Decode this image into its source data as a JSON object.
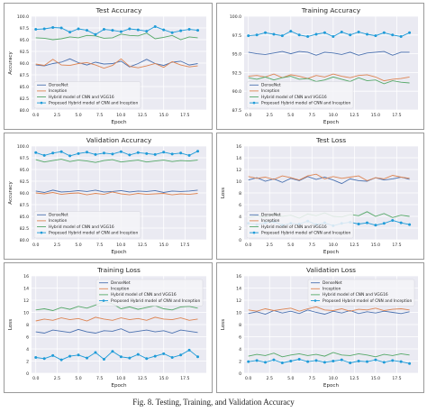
{
  "figure": {
    "caption": "Fig. 8.   Testing, Training, and Validation Accuracy",
    "colors": {
      "panel_bg": "#eaeaf2",
      "grid": "#ffffff",
      "densenet": "#4c72b0",
      "inception": "#dd8452",
      "hybrid_vgg": "#55a868",
      "proposed": "#1f9bd8"
    }
  },
  "chart_data": [
    {
      "type": "line",
      "title": "Test Accuracy",
      "xlabel": "Epoch",
      "ylabel": "Accuracy",
      "xlim": [
        -0.5,
        20
      ],
      "ylim": [
        80,
        100
      ],
      "xticks": [
        0,
        2.5,
        5,
        7.5,
        10,
        12.5,
        15,
        17.5
      ],
      "xtick_labels": [
        "0.0",
        "2.5",
        "5.0",
        "7.5",
        "10.0",
        "12.5",
        "15.0",
        "17.5"
      ],
      "yticks": [
        80,
        82.5,
        85,
        87.5,
        90,
        92.5,
        95,
        97.5,
        100
      ],
      "ytick_labels": [
        "80.0",
        "82.5",
        "85.0",
        "87.5",
        "90.0",
        "92.5",
        "95.0",
        "97.5",
        "100.0"
      ],
      "grid": true,
      "legend": "bottom-left",
      "x": [
        0,
        1,
        2,
        3,
        4,
        5,
        6,
        7,
        8,
        9,
        10,
        11,
        12,
        13,
        14,
        15,
        16,
        17,
        18,
        19
      ],
      "series": [
        {
          "name": "DenseNet",
          "color_key": "densenet",
          "marker": false,
          "values": [
            89.6,
            89.4,
            89.9,
            90.2,
            90.9,
            90.1,
            89.6,
            90.2,
            89.8,
            89.9,
            90.4,
            89.2,
            89.9,
            90.8,
            89.9,
            89.5,
            90.2,
            90.4,
            89.6,
            89.9
          ]
        },
        {
          "name": "Inception",
          "color_key": "inception",
          "marker": false,
          "values": [
            89.8,
            89.5,
            90.8,
            89.6,
            89.5,
            89.9,
            90.1,
            89.6,
            88.9,
            89.5,
            90.9,
            89.3,
            89.0,
            89.4,
            89.9,
            89.1,
            90.3,
            89.6,
            89.2,
            89.4
          ]
        },
        {
          "name": "Hybrid model of CNN and VGG16",
          "color_key": "hybrid_vgg",
          "marker": false,
          "values": [
            95.4,
            95.3,
            95.0,
            95.2,
            95.6,
            95.4,
            95.9,
            95.8,
            95.3,
            95.4,
            96.2,
            95.9,
            95.8,
            96.4,
            95.2,
            95.5,
            95.9,
            95.0,
            95.6,
            95.4
          ]
        },
        {
          "name": "Proposed Hybrid model of CNN and Inception",
          "color_key": "proposed",
          "marker": true,
          "values": [
            97.2,
            97.3,
            97.6,
            97.5,
            96.6,
            97.3,
            97.0,
            96.1,
            97.2,
            97.0,
            96.7,
            97.3,
            97.1,
            96.8,
            97.8,
            97.1,
            96.5,
            96.9,
            97.2,
            97.0
          ]
        }
      ]
    },
    {
      "type": "line",
      "title": "Training Accuracy",
      "xlabel": "Epoch",
      "ylabel": "",
      "xlim": [
        -0.5,
        20
      ],
      "ylim": [
        87.5,
        100
      ],
      "xticks": [
        0,
        2.5,
        5,
        7.5,
        10,
        12.5,
        15,
        17.5
      ],
      "xtick_labels": [
        "0.0",
        "2.5",
        "5.0",
        "7.5",
        "10.0",
        "12.5",
        "15.0",
        "17.5"
      ],
      "yticks": [
        87.5,
        90,
        92.5,
        95,
        97.5,
        100
      ],
      "ytick_labels": [
        "87.5",
        "90.0",
        "92.5",
        "95.0",
        "97.5",
        "100.0"
      ],
      "grid": true,
      "legend": "bottom-left",
      "x": [
        0,
        1,
        2,
        3,
        4,
        5,
        6,
        7,
        8,
        9,
        10,
        11,
        12,
        13,
        14,
        15,
        16,
        17,
        18,
        19
      ],
      "series": [
        {
          "name": "DenseNet",
          "color_key": "densenet",
          "marker": false,
          "values": [
            95.2,
            95.0,
            94.9,
            95.1,
            95.3,
            95.0,
            95.3,
            95.2,
            94.8,
            95.2,
            95.1,
            94.9,
            95.2,
            94.8,
            95.1,
            95.2,
            95.3,
            94.8,
            95.2,
            95.2
          ]
        },
        {
          "name": "Inception",
          "color_key": "inception",
          "marker": false,
          "values": [
            92.0,
            92.1,
            91.9,
            92.3,
            91.8,
            92.2,
            92.0,
            91.7,
            92.1,
            91.9,
            92.3,
            92.0,
            91.8,
            92.1,
            92.2,
            91.9,
            91.4,
            91.6,
            91.7,
            91.9
          ]
        },
        {
          "name": "Hybrid model of CNN and VGG16",
          "color_key": "hybrid_vgg",
          "marker": false,
          "values": [
            91.8,
            91.6,
            91.9,
            91.5,
            91.8,
            92.0,
            91.6,
            91.7,
            91.3,
            91.5,
            91.9,
            91.6,
            91.3,
            91.8,
            91.4,
            91.5,
            91.0,
            91.4,
            91.2,
            91.1
          ]
        },
        {
          "name": "Proposed Hybrid model of CNN and Inception",
          "color_key": "proposed",
          "marker": true,
          "values": [
            97.4,
            97.5,
            97.8,
            97.6,
            97.4,
            98.0,
            97.5,
            97.3,
            97.6,
            97.8,
            97.3,
            97.9,
            97.5,
            97.9,
            97.6,
            97.4,
            97.8,
            97.5,
            97.3,
            97.8
          ]
        }
      ]
    },
    {
      "type": "line",
      "title": "Validation Accuracy",
      "xlabel": "Epoch",
      "ylabel": "Accuracy",
      "xlim": [
        -0.5,
        20
      ],
      "ylim": [
        80,
        100
      ],
      "xticks": [
        0,
        2.5,
        5,
        7.5,
        10,
        12.5,
        15,
        17.5
      ],
      "xtick_labels": [
        "0.0",
        "2.5",
        "5.0",
        "7.5",
        "10.0",
        "12.5",
        "15.0",
        "17.5"
      ],
      "yticks": [
        80,
        82.5,
        85,
        87.5,
        90,
        92.5,
        95,
        97.5,
        100
      ],
      "ytick_labels": [
        "80.0",
        "82.5",
        "85.0",
        "87.5",
        "90.0",
        "92.5",
        "95.0",
        "97.5",
        "100.0"
      ],
      "grid": true,
      "legend": "bottom-left",
      "x": [
        0,
        1,
        2,
        3,
        4,
        5,
        6,
        7,
        8,
        9,
        10,
        11,
        12,
        13,
        14,
        15,
        16,
        17,
        18,
        19
      ],
      "series": [
        {
          "name": "DenseNet",
          "color_key": "densenet",
          "marker": false,
          "values": [
            90.4,
            90.1,
            90.6,
            90.2,
            90.3,
            90.5,
            90.3,
            90.6,
            90.2,
            90.3,
            90.5,
            90.2,
            90.4,
            90.3,
            90.5,
            90.1,
            90.4,
            90.3,
            90.4,
            90.6
          ]
        },
        {
          "name": "Inception",
          "color_key": "inception",
          "marker": false,
          "values": [
            90.0,
            89.8,
            90.1,
            89.7,
            89.9,
            90.0,
            89.6,
            89.9,
            89.7,
            90.2,
            89.8,
            89.6,
            89.9,
            89.7,
            89.8,
            89.9,
            89.6,
            89.8,
            89.7,
            89.9
          ]
        },
        {
          "name": "Hybrid model of CNN and VGG16",
          "color_key": "hybrid_vgg",
          "marker": false,
          "values": [
            97.1,
            96.6,
            96.9,
            97.2,
            96.7,
            97.0,
            96.8,
            96.5,
            96.9,
            97.1,
            96.6,
            96.8,
            97.0,
            96.6,
            96.8,
            97.0,
            96.7,
            96.9,
            96.8,
            97.0
          ]
        },
        {
          "name": "Proposed Hybrid model of CNN and Inception",
          "color_key": "proposed",
          "marker": true,
          "values": [
            98.6,
            98.0,
            98.5,
            98.8,
            97.9,
            98.4,
            98.7,
            98.2,
            98.5,
            98.3,
            98.8,
            98.1,
            98.6,
            98.4,
            98.2,
            98.7,
            98.3,
            98.5,
            98.0,
            98.9
          ]
        }
      ]
    },
    {
      "type": "line",
      "title": "Test Loss",
      "xlabel": "Epoch",
      "ylabel": "Loss",
      "xlim": [
        -0.5,
        20
      ],
      "ylim": [
        0,
        16
      ],
      "xticks": [
        0,
        2.5,
        5,
        7.5,
        10,
        12.5,
        15,
        17.5
      ],
      "xtick_labels": [
        "0.0",
        "2.5",
        "5.0",
        "7.5",
        "10.0",
        "12.5",
        "15.0",
        "17.5"
      ],
      "yticks": [
        0,
        2,
        4,
        6,
        8,
        10,
        12,
        14,
        16
      ],
      "ytick_labels": [
        "0",
        "2",
        "4",
        "6",
        "8",
        "10",
        "12",
        "14",
        "16"
      ],
      "grid": true,
      "legend": "bottom-left",
      "x": [
        0,
        1,
        2,
        3,
        4,
        5,
        6,
        7,
        8,
        9,
        10,
        11,
        12,
        13,
        14,
        15,
        16,
        17,
        18,
        19
      ],
      "series": [
        {
          "name": "DenseNet",
          "color_key": "densenet",
          "marker": false,
          "values": [
            10.2,
            10.6,
            10.0,
            10.4,
            9.8,
            10.5,
            10.1,
            10.8,
            10.3,
            10.7,
            10.2,
            9.6,
            10.4,
            10.1,
            10.0,
            10.6,
            10.2,
            10.4,
            10.7,
            10.3
          ]
        },
        {
          "name": "Inception",
          "color_key": "inception",
          "marker": false,
          "values": [
            10.8,
            10.5,
            10.7,
            10.3,
            10.9,
            10.6,
            10.2,
            10.9,
            11.2,
            10.4,
            10.8,
            10.5,
            10.7,
            10.9,
            10.1,
            10.6,
            10.4,
            11.0,
            10.7,
            10.5
          ]
        },
        {
          "name": "Hybrid model of CNN and VGG16",
          "color_key": "hybrid_vgg",
          "marker": false,
          "values": [
            3.8,
            4.1,
            3.9,
            4.3,
            4.0,
            4.2,
            3.7,
            4.4,
            4.1,
            4.6,
            4.0,
            3.9,
            4.3,
            4.1,
            4.8,
            4.0,
            4.5,
            3.8,
            4.2,
            4.0
          ]
        },
        {
          "name": "Proposed Hybrid model of CNN and Inception",
          "color_key": "proposed",
          "marker": true,
          "values": [
            2.8,
            2.6,
            2.9,
            3.1,
            2.5,
            2.8,
            2.7,
            3.2,
            2.6,
            2.9,
            2.4,
            2.8,
            3.0,
            2.7,
            2.9,
            2.5,
            2.8,
            3.3,
            2.9,
            2.6
          ]
        }
      ]
    },
    {
      "type": "line",
      "title": "Training Loss",
      "xlabel": "Epoch",
      "ylabel": "Loss",
      "xlim": [
        -0.5,
        20
      ],
      "ylim": [
        0,
        16
      ],
      "xticks": [
        0,
        2.5,
        5,
        7.5,
        10,
        12.5,
        15,
        17.5
      ],
      "xtick_labels": [
        "0.0",
        "2.5",
        "5.0",
        "7.5",
        "10.0",
        "12.5",
        "15.0",
        "17.5"
      ],
      "yticks": [
        0,
        2,
        4,
        6,
        8,
        10,
        12,
        14,
        16
      ],
      "ytick_labels": [
        "0",
        "2",
        "4",
        "6",
        "8",
        "10",
        "12",
        "14",
        "16"
      ],
      "grid": true,
      "legend": "top-right",
      "x": [
        0,
        1,
        2,
        3,
        4,
        5,
        6,
        7,
        8,
        9,
        10,
        11,
        12,
        13,
        14,
        15,
        16,
        17,
        18,
        19
      ],
      "series": [
        {
          "name": "DenseNet",
          "color_key": "densenet",
          "marker": false,
          "values": [
            6.8,
            6.6,
            7.1,
            6.9,
            6.7,
            7.2,
            6.8,
            6.6,
            7.0,
            6.9,
            7.3,
            6.7,
            6.9,
            7.1,
            6.8,
            7.0,
            6.6,
            7.1,
            6.9,
            6.7
          ]
        },
        {
          "name": "Inception",
          "color_key": "inception",
          "marker": false,
          "values": [
            8.6,
            8.9,
            8.7,
            9.1,
            8.8,
            9.0,
            8.6,
            9.2,
            8.9,
            8.7,
            9.1,
            8.8,
            9.0,
            8.7,
            9.2,
            8.9,
            8.8,
            9.1,
            8.7,
            8.9
          ]
        },
        {
          "name": "Hybrid model of CNN and VGG16",
          "color_key": "hybrid_vgg",
          "marker": false,
          "values": [
            10.4,
            10.6,
            10.3,
            10.8,
            10.5,
            11.0,
            10.7,
            11.2,
            11.8,
            11.4,
            10.6,
            10.9,
            10.5,
            10.8,
            11.1,
            10.6,
            10.4,
            10.9,
            11.0,
            10.7
          ]
        },
        {
          "name": "Proposed Hybrid model of CNN and Inception",
          "color_key": "proposed",
          "marker": true,
          "values": [
            2.6,
            2.4,
            2.9,
            2.2,
            2.8,
            3.0,
            2.5,
            3.4,
            2.3,
            3.6,
            2.7,
            2.5,
            3.1,
            2.4,
            2.8,
            3.2,
            2.6,
            3.0,
            3.8,
            2.7
          ]
        }
      ]
    },
    {
      "type": "line",
      "title": "Validation Loss",
      "xlabel": "Epoch",
      "ylabel": "Loss",
      "xlim": [
        -0.5,
        20
      ],
      "ylim": [
        0,
        16
      ],
      "xticks": [
        0,
        2.5,
        5,
        7.5,
        10,
        12.5,
        15,
        17.5
      ],
      "xtick_labels": [
        "0.0",
        "2.5",
        "5.0",
        "7.5",
        "10.0",
        "12.5",
        "15.0",
        "17.5"
      ],
      "yticks": [
        0,
        2,
        4,
        6,
        8,
        10,
        12,
        14,
        16
      ],
      "ytick_labels": [
        "0",
        "2",
        "4",
        "6",
        "8",
        "10",
        "12",
        "14",
        "16"
      ],
      "grid": true,
      "legend": "top-right",
      "x": [
        0,
        1,
        2,
        3,
        4,
        5,
        6,
        7,
        8,
        9,
        10,
        11,
        12,
        13,
        14,
        15,
        16,
        17,
        18,
        19
      ],
      "series": [
        {
          "name": "DenseNet",
          "color_key": "densenet",
          "marker": false,
          "values": [
            9.8,
            10.1,
            9.7,
            10.3,
            9.9,
            10.2,
            9.8,
            10.4,
            10.0,
            9.7,
            10.2,
            9.9,
            10.3,
            9.8,
            10.1,
            9.9,
            10.2,
            10.0,
            9.8,
            10.1
          ]
        },
        {
          "name": "Inception",
          "color_key": "inception",
          "marker": false,
          "values": [
            10.4,
            10.2,
            10.6,
            10.3,
            10.5,
            10.7,
            10.2,
            10.6,
            10.9,
            10.4,
            10.3,
            10.6,
            10.2,
            10.5,
            10.4,
            10.7,
            10.3,
            10.5,
            10.6,
            10.4
          ]
        },
        {
          "name": "Hybrid model of CNN and VGG16",
          "color_key": "hybrid_vgg",
          "marker": false,
          "values": [
            2.8,
            3.1,
            2.9,
            3.3,
            2.7,
            3.0,
            3.2,
            2.9,
            3.1,
            2.8,
            3.4,
            3.0,
            2.9,
            3.2,
            3.0,
            2.7,
            3.1,
            2.9,
            3.2,
            3.0
          ]
        },
        {
          "name": "Proposed Hybrid model of CNN and Inception",
          "color_key": "proposed",
          "marker": true,
          "values": [
            1.9,
            2.1,
            1.8,
            2.2,
            1.7,
            2.0,
            2.3,
            1.9,
            2.1,
            1.8,
            2.0,
            2.2,
            1.7,
            2.0,
            1.9,
            2.2,
            1.8,
            2.1,
            1.9,
            1.6
          ]
        }
      ]
    }
  ]
}
